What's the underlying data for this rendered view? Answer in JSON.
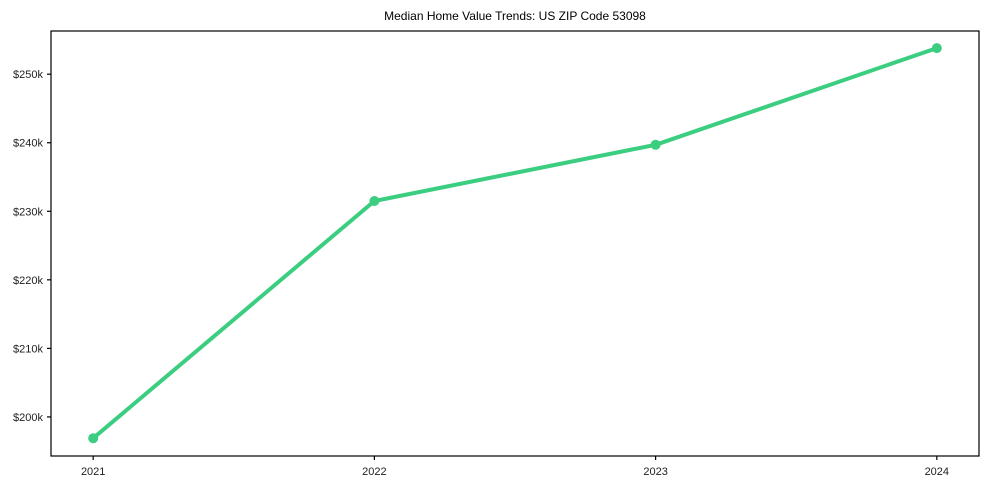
{
  "chart_data": {
    "type": "line",
    "title": "Median Home Value Trends: US ZIP Code 53098",
    "x": [
      2021,
      2022,
      2023,
      2024
    ],
    "x_tick_labels": [
      "2021",
      "2022",
      "2023",
      "2024"
    ],
    "series": [
      {
        "name": "median-home-value",
        "values": [
          196900,
          231500,
          239700,
          253800
        ],
        "color": "#3bce80"
      }
    ],
    "y_ticks": [
      200000,
      210000,
      220000,
      230000,
      240000,
      250000
    ],
    "y_tick_labels": [
      "$200k",
      "$210k",
      "$220k",
      "$230k",
      "$240k",
      "$250k"
    ],
    "xlim": [
      2020.85,
      2024.15
    ],
    "ylim": [
      194300,
      256300
    ],
    "xlabel": "",
    "ylabel": "",
    "grid": false,
    "legend_position": "none",
    "line_width": 4,
    "marker": "circle",
    "marker_radius": 5,
    "spine_color": "#000000",
    "tick_label_color": "#1f1f1f",
    "background": "#ffffff"
  }
}
